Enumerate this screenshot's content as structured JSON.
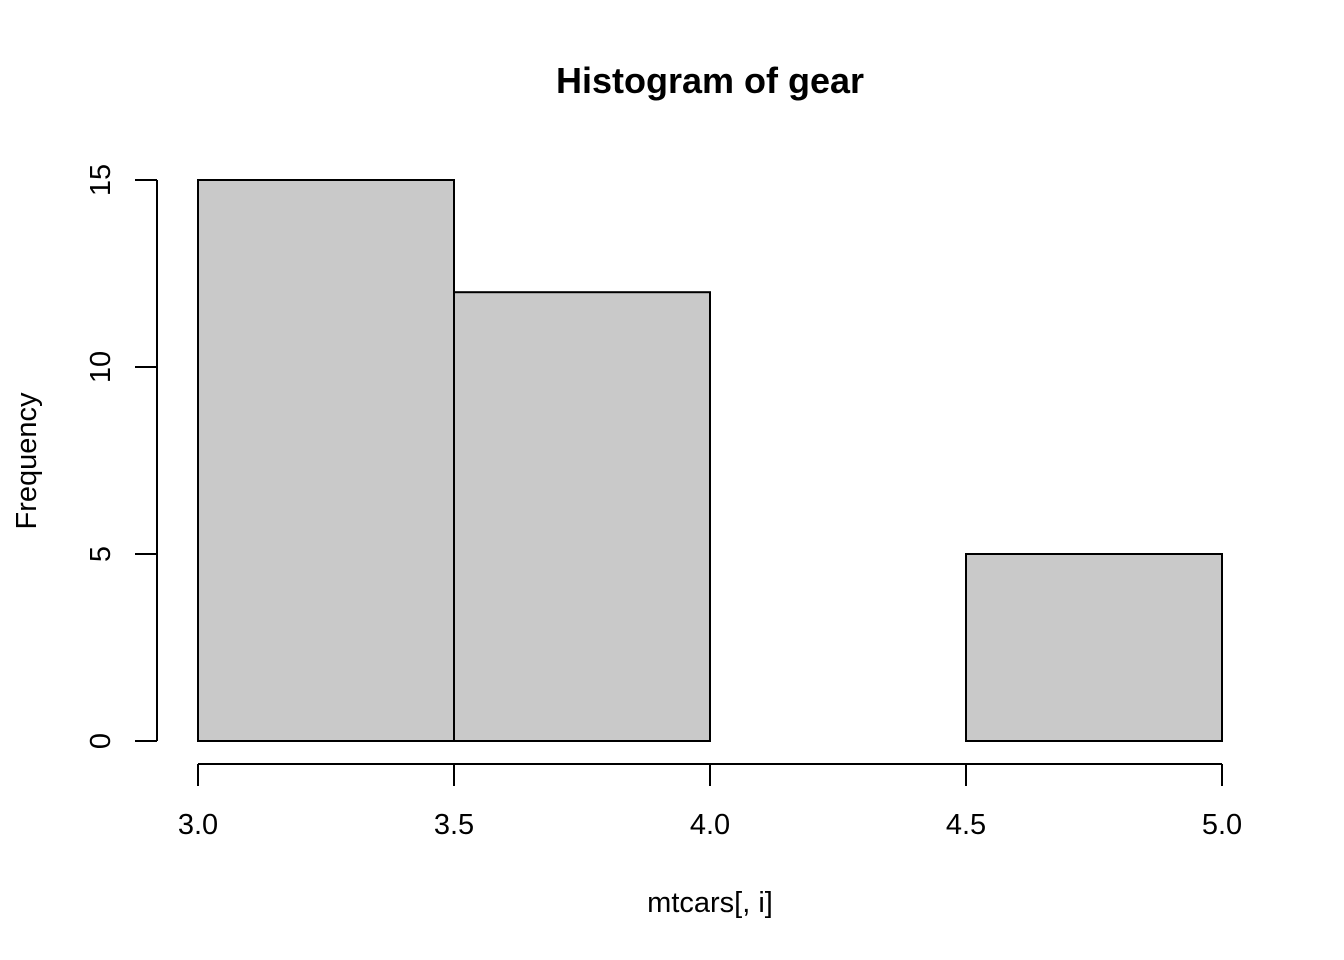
{
  "chart_data": {
    "type": "bar",
    "title": "Histogram of gear",
    "xlabel": "mtcars[, i]",
    "ylabel": "Frequency",
    "bins": [
      {
        "start": 3.0,
        "end": 3.5,
        "count": 15
      },
      {
        "start": 3.5,
        "end": 4.0,
        "count": 12
      },
      {
        "start": 4.0,
        "end": 4.5,
        "count": 0
      },
      {
        "start": 4.5,
        "end": 5.0,
        "count": 5
      }
    ],
    "xlim": [
      3.0,
      5.0
    ],
    "ylim": [
      0,
      15
    ],
    "xticks": [
      "3.0",
      "3.5",
      "4.0",
      "4.5",
      "5.0"
    ],
    "yticks": [
      "0",
      "5",
      "10",
      "15"
    ],
    "grid": false,
    "bar_color": "#c9c9c9",
    "edge_color": "#000000"
  }
}
